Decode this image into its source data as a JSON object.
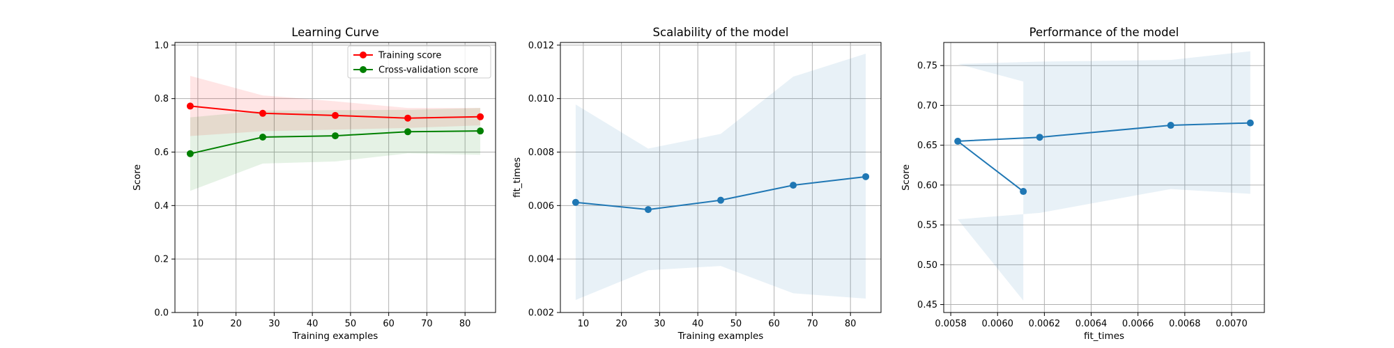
{
  "chart_data": [
    {
      "type": "line",
      "title": "Learning Curve",
      "xlabel": "Training examples",
      "ylabel": "Score",
      "xlim": [
        4,
        88
      ],
      "ylim": [
        0.0,
        1.01
      ],
      "xticks": [
        10,
        20,
        30,
        40,
        50,
        60,
        70,
        80
      ],
      "yticks": [
        0.0,
        0.2,
        0.4,
        0.6,
        0.8,
        1.0
      ],
      "xtick_labels": [
        "10",
        "20",
        "30",
        "40",
        "50",
        "60",
        "70",
        "80"
      ],
      "ytick_labels": [
        "0.0",
        "0.2",
        "0.4",
        "0.6",
        "0.8",
        "1.0"
      ],
      "grid": true,
      "legend": "top-right",
      "x": [
        8,
        27,
        46,
        65,
        84
      ],
      "series": [
        {
          "name": "Training score",
          "color": "#ff0000",
          "values": [
            0.772,
            0.745,
            0.737,
            0.727,
            0.732
          ],
          "band_upper": [
            0.885,
            0.812,
            0.79,
            0.765,
            0.765
          ],
          "band_lower": [
            0.66,
            0.678,
            0.684,
            0.69,
            0.7
          ],
          "band_color": "#ff0000"
        },
        {
          "name": "Cross-validation score",
          "color": "#008000",
          "values": [
            0.594,
            0.656,
            0.661,
            0.676,
            0.679
          ],
          "band_upper": [
            0.73,
            0.755,
            0.757,
            0.758,
            0.765
          ],
          "band_lower": [
            0.455,
            0.557,
            0.565,
            0.595,
            0.59
          ],
          "band_color": "#008000"
        }
      ]
    },
    {
      "type": "line",
      "title": "Scalability of the model",
      "xlabel": "Training examples",
      "ylabel": "fit_times",
      "xlim": [
        4,
        88
      ],
      "ylim": [
        0.002,
        0.0121
      ],
      "xticks": [
        10,
        20,
        30,
        40,
        50,
        60,
        70,
        80
      ],
      "yticks": [
        0.002,
        0.004,
        0.006,
        0.008,
        0.01,
        0.012
      ],
      "xtick_labels": [
        "10",
        "20",
        "30",
        "40",
        "50",
        "60",
        "70",
        "80"
      ],
      "ytick_labels": [
        "0.002",
        "0.004",
        "0.006",
        "0.008",
        "0.010",
        "0.012"
      ],
      "grid": true,
      "x": [
        8,
        27,
        46,
        65,
        84
      ],
      "series": [
        {
          "color": "#1f77b4",
          "values": [
            0.00612,
            0.00585,
            0.0062,
            0.00676,
            0.00708
          ],
          "band_upper": [
            0.00978,
            0.00813,
            0.00868,
            0.01082,
            0.01168
          ],
          "band_lower": [
            0.00247,
            0.00358,
            0.00374,
            0.00272,
            0.00252
          ],
          "band_color": "#1f77b4"
        }
      ]
    },
    {
      "type": "line",
      "title": "Performance of the model",
      "xlabel": "fit_times",
      "ylabel": "Score",
      "xlim": [
        0.00577,
        0.00714
      ],
      "ylim": [
        0.44,
        0.779
      ],
      "xticks": [
        0.0058,
        0.006,
        0.0062,
        0.0064,
        0.0066,
        0.0068,
        0.007
      ],
      "yticks": [
        0.45,
        0.5,
        0.55,
        0.6,
        0.65,
        0.7,
        0.75
      ],
      "xtick_labels": [
        "0.0058",
        "0.0060",
        "0.0062",
        "0.0064",
        "0.0066",
        "0.0068",
        "0.0070"
      ],
      "ytick_labels": [
        "0.45",
        "0.50",
        "0.55",
        "0.60",
        "0.65",
        "0.70",
        "0.75"
      ],
      "grid": true,
      "x": [
        0.00611,
        0.00583,
        0.00618,
        0.00674,
        0.00708
      ],
      "series": [
        {
          "color": "#1f77b4",
          "values": [
            0.592,
            0.655,
            0.66,
            0.675,
            0.678
          ],
          "band_upper": [
            0.73,
            0.752,
            0.755,
            0.757,
            0.768
          ],
          "band_lower": [
            0.455,
            0.557,
            0.565,
            0.595,
            0.589
          ],
          "band_color": "#1f77b4"
        }
      ]
    }
  ]
}
